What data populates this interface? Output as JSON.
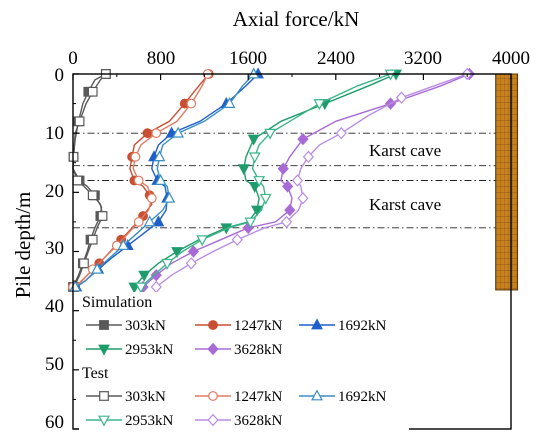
{
  "chart_data": {
    "type": "line",
    "xlabel": "Axial force/kN",
    "ylabel": "Pile depth/m",
    "xlim": [
      0,
      4000
    ],
    "ylim": [
      0,
      60
    ],
    "x_ticks": [
      "0",
      "800",
      "1600",
      "2400",
      "3200",
      "4000"
    ],
    "y_ticks": [
      "0",
      "10",
      "20",
      "30",
      "40",
      "50",
      "60"
    ],
    "y_axis_inverted": true,
    "x_axis_position": "top",
    "grid": false,
    "legend": {
      "position": "bottom-left",
      "groups": [
        "Simulation",
        "Test"
      ]
    },
    "annotations": [
      {
        "text": "Karst cave",
        "depth_range": [
          15.5,
          18
        ]
      },
      {
        "text": "Karst cave",
        "depth_range": [
          18,
          26
        ]
      }
    ],
    "reference_lines_depth": [
      10,
      15.5,
      18,
      26
    ],
    "pile": {
      "depth_range": [
        0,
        36.5
      ]
    },
    "series": [
      {
        "name": "303kN",
        "group": "Simulation",
        "color": "#595959",
        "marker": "filled-square",
        "points": [
          [
            300,
            0
          ],
          [
            200,
            1
          ],
          [
            140,
            3
          ],
          [
            90,
            5
          ],
          [
            50,
            8
          ],
          [
            20,
            11
          ],
          [
            5,
            14
          ],
          [
            0,
            16
          ],
          [
            60,
            18
          ],
          [
            130,
            19
          ],
          [
            200,
            20.5
          ],
          [
            260,
            22.5
          ],
          [
            250,
            24
          ],
          [
            200,
            26
          ],
          [
            160,
            28
          ],
          [
            130,
            30
          ],
          [
            90,
            32
          ],
          [
            50,
            34
          ],
          [
            0,
            36
          ]
        ]
      },
      {
        "name": "1247kN",
        "group": "Simulation",
        "color": "#c94f33",
        "marker": "filled-circle",
        "points": [
          [
            1240,
            0
          ],
          [
            1150,
            2
          ],
          [
            1020,
            5
          ],
          [
            880,
            8
          ],
          [
            680,
            10
          ],
          [
            560,
            12
          ],
          [
            540,
            14
          ],
          [
            520,
            16
          ],
          [
            560,
            18
          ],
          [
            640,
            19
          ],
          [
            700,
            20.5
          ],
          [
            720,
            22
          ],
          [
            640,
            24
          ],
          [
            540,
            26
          ],
          [
            440,
            28
          ],
          [
            340,
            30
          ],
          [
            240,
            32
          ],
          [
            130,
            34
          ],
          [
            20,
            36
          ]
        ]
      },
      {
        "name": "1692kN",
        "group": "Simulation",
        "color": "#1f5fc9",
        "marker": "filled-triangle-up",
        "points": [
          [
            1690,
            0
          ],
          [
            1580,
            2
          ],
          [
            1400,
            5
          ],
          [
            1160,
            8
          ],
          [
            900,
            10
          ],
          [
            780,
            12
          ],
          [
            740,
            14
          ],
          [
            720,
            16
          ],
          [
            770,
            18
          ],
          [
            840,
            19
          ],
          [
            860,
            21
          ],
          [
            850,
            23
          ],
          [
            780,
            25
          ],
          [
            640,
            27
          ],
          [
            500,
            29
          ],
          [
            360,
            31
          ],
          [
            230,
            33
          ],
          [
            110,
            35
          ],
          [
            30,
            36
          ]
        ]
      },
      {
        "name": "2953kN",
        "group": "Simulation",
        "color": "#1e9c6c",
        "marker": "filled-triangle-down",
        "points": [
          [
            2950,
            0
          ],
          [
            2700,
            2
          ],
          [
            2300,
            5
          ],
          [
            1900,
            8
          ],
          [
            1650,
            11
          ],
          [
            1580,
            14
          ],
          [
            1560,
            16
          ],
          [
            1580,
            18
          ],
          [
            1660,
            19
          ],
          [
            1700,
            21
          ],
          [
            1680,
            23
          ],
          [
            1600,
            25
          ],
          [
            1400,
            26
          ],
          [
            1150,
            28
          ],
          [
            950,
            30
          ],
          [
            780,
            32
          ],
          [
            650,
            34
          ],
          [
            560,
            36
          ]
        ]
      },
      {
        "name": "3628kN",
        "group": "Simulation",
        "color": "#a86bd6",
        "marker": "filled-diamond",
        "points": [
          [
            3620,
            0
          ],
          [
            3360,
            2
          ],
          [
            2900,
            5
          ],
          [
            2400,
            8
          ],
          [
            2100,
            11
          ],
          [
            1980,
            14
          ],
          [
            1920,
            16
          ],
          [
            1900,
            18
          ],
          [
            1960,
            19
          ],
          [
            2000,
            21
          ],
          [
            1980,
            23
          ],
          [
            1850,
            25
          ],
          [
            1600,
            26
          ],
          [
            1350,
            28
          ],
          [
            1100,
            30
          ],
          [
            900,
            32
          ],
          [
            760,
            34
          ],
          [
            640,
            36
          ]
        ]
      },
      {
        "name": "303kN",
        "group": "Test",
        "color": "#595959",
        "marker": "open-square",
        "points": [
          [
            300,
            0
          ],
          [
            250,
            1
          ],
          [
            180,
            3
          ],
          [
            120,
            5
          ],
          [
            60,
            8
          ],
          [
            20,
            10
          ],
          [
            5,
            14
          ],
          [
            0,
            16
          ],
          [
            40,
            18
          ],
          [
            100,
            19
          ],
          [
            180,
            20.5
          ],
          [
            250,
            22
          ],
          [
            270,
            24
          ],
          [
            220,
            26
          ],
          [
            180,
            28
          ],
          [
            140,
            30
          ],
          [
            100,
            32
          ],
          [
            60,
            34
          ],
          [
            10,
            36
          ]
        ]
      },
      {
        "name": "1247kN",
        "group": "Test",
        "color": "#e07b63",
        "marker": "open-circle",
        "points": [
          [
            1230,
            0
          ],
          [
            1180,
            2
          ],
          [
            1080,
            5
          ],
          [
            950,
            8
          ],
          [
            760,
            10
          ],
          [
            620,
            12
          ],
          [
            570,
            14
          ],
          [
            550,
            16
          ],
          [
            600,
            18
          ],
          [
            680,
            19
          ],
          [
            720,
            21
          ],
          [
            690,
            23
          ],
          [
            600,
            25
          ],
          [
            500,
            27
          ],
          [
            400,
            29
          ],
          [
            290,
            31
          ],
          [
            180,
            33
          ],
          [
            80,
            35
          ],
          [
            0,
            36
          ]
        ]
      },
      {
        "name": "1692kN",
        "group": "Test",
        "color": "#3a8fc4",
        "marker": "open-triangle-up",
        "points": [
          [
            1650,
            0
          ],
          [
            1550,
            2
          ],
          [
            1430,
            5
          ],
          [
            1200,
            8
          ],
          [
            960,
            10
          ],
          [
            820,
            12
          ],
          [
            790,
            14
          ],
          [
            770,
            16
          ],
          [
            800,
            18
          ],
          [
            860,
            19
          ],
          [
            880,
            21
          ],
          [
            820,
            23
          ],
          [
            700,
            25
          ],
          [
            580,
            27
          ],
          [
            460,
            29
          ],
          [
            340,
            31
          ],
          [
            220,
            33
          ],
          [
            110,
            35
          ],
          [
            20,
            36
          ]
        ]
      },
      {
        "name": "2953kN",
        "group": "Test",
        "color": "#3cb58b",
        "marker": "open-triangle-down",
        "points": [
          [
            2900,
            0
          ],
          [
            2600,
            2
          ],
          [
            2250,
            5
          ],
          [
            1980,
            8
          ],
          [
            1800,
            10
          ],
          [
            1700,
            12
          ],
          [
            1660,
            14
          ],
          [
            1640,
            16
          ],
          [
            1700,
            18
          ],
          [
            1740,
            19
          ],
          [
            1760,
            21
          ],
          [
            1720,
            23
          ],
          [
            1620,
            25
          ],
          [
            1420,
            26
          ],
          [
            1180,
            28
          ],
          [
            1000,
            30
          ],
          [
            860,
            32
          ],
          [
            740,
            34
          ],
          [
            620,
            36
          ]
        ]
      },
      {
        "name": "3628kN",
        "group": "Test",
        "color": "#b98de3",
        "marker": "open-diamond",
        "points": [
          [
            3600,
            0
          ],
          [
            3300,
            2
          ],
          [
            3000,
            4
          ],
          [
            2700,
            7
          ],
          [
            2450,
            10
          ],
          [
            2250,
            12
          ],
          [
            2150,
            14
          ],
          [
            2080,
            16
          ],
          [
            2050,
            18
          ],
          [
            2080,
            19
          ],
          [
            2100,
            21
          ],
          [
            2060,
            23
          ],
          [
            1950,
            25
          ],
          [
            1750,
            26
          ],
          [
            1500,
            28
          ],
          [
            1280,
            30
          ],
          [
            1080,
            32
          ],
          [
            900,
            34
          ],
          [
            760,
            36
          ]
        ]
      }
    ]
  }
}
